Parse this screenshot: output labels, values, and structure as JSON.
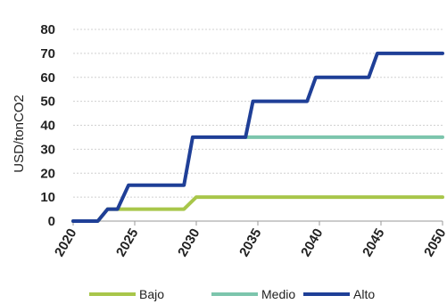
{
  "chart_data": {
    "type": "line",
    "title": "",
    "xlabel": "",
    "ylabel": "USD/tonCO2",
    "xlim": [
      2020,
      2050
    ],
    "ylim": [
      0,
      80
    ],
    "x_ticks": [
      "2020",
      "2025",
      "2030",
      "2035",
      "2040",
      "2045",
      "2050"
    ],
    "y_ticks": [
      "0",
      "10",
      "20",
      "30",
      "40",
      "50",
      "60",
      "70",
      "80"
    ],
    "grid": true,
    "legend_position": "bottom",
    "series": [
      {
        "name": "Bajo",
        "color": "#a8c64a",
        "x": [
          2020,
          2022,
          2022.8,
          2023.6,
          2024,
          2029,
          2030,
          2050
        ],
        "y": [
          0,
          0,
          5,
          5,
          5,
          5,
          10,
          10
        ]
      },
      {
        "name": "Medio",
        "color": "#7cc5ac",
        "x": [
          2034,
          2050
        ],
        "y": [
          35,
          35
        ]
      },
      {
        "name": "Alto",
        "color": "#1f3f97",
        "x": [
          2020,
          2022,
          2022.8,
          2023.6,
          2024.5,
          2029,
          2029.7,
          2034,
          2034.6,
          2039,
          2039.7,
          2044,
          2044.7,
          2050
        ],
        "y": [
          0,
          0,
          5,
          5,
          15,
          15,
          35,
          35,
          50,
          50,
          60,
          60,
          70,
          70
        ]
      }
    ]
  }
}
